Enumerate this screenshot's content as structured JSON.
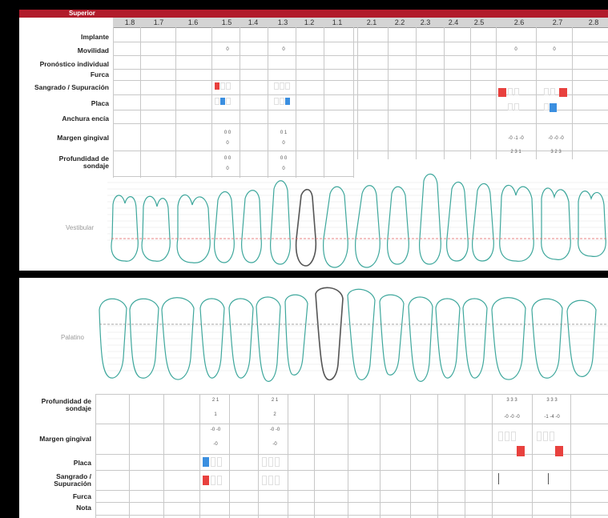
{
  "header": {
    "section_title": "Superior"
  },
  "teeth": [
    "1.8",
    "1.7",
    "1.6",
    "1.5",
    "1.4",
    "1.3",
    "1.2",
    "1.1",
    "2.1",
    "2.2",
    "2.3",
    "2.4",
    "2.5",
    "2.6",
    "2.7",
    "2.8"
  ],
  "upper_rows": [
    "Implante",
    "Movilidad",
    "Pronóstico individual",
    "Furca",
    "Sangrado / Supuración",
    "Placa",
    "Anchura encía",
    "Margen gingival",
    "Profundidad de sondaje"
  ],
  "lower_rows": [
    "Profundidad de sondaje",
    "Margen gingival",
    "Placa",
    "Sangrado / Supuración",
    "Furca",
    "Nota"
  ],
  "views": {
    "vestibular": "Vestibular",
    "palatino": "Palatino"
  },
  "colors": {
    "bleeding": "#e8413e",
    "plaque": "#3b8fe0",
    "tooth_outline": "#3ea79c",
    "header_bar": "#b11b2b"
  },
  "upper_values": {
    "t15": {
      "movilidad": "0",
      "margen_1": "0 0",
      "margen_2": "0",
      "sondaje_1": "0 0",
      "sondaje_2": "0"
    },
    "t13": {
      "movilidad": "0",
      "margen_1": "0 1",
      "margen_2": "0",
      "sondaje_1": "0 0",
      "sondaje_2": "0"
    },
    "t26": {
      "movilidad": "0",
      "margen_1": "-0 -1 -0",
      "sondaje_1": "2 3 1"
    },
    "t27": {
      "movilidad": "0",
      "margen_1": "-0 -0 -0",
      "sondaje_1": "3 2 3"
    }
  },
  "lower_values": {
    "t15": {
      "sondaje_1": "2 1",
      "sondaje_2": "1",
      "margen_1": "-0 -0",
      "margen_2": "-0"
    },
    "t13": {
      "sondaje_1": "2 1",
      "sondaje_2": "2",
      "margen_1": "-0 -0",
      "margen_2": "-0"
    },
    "t26": {
      "sondaje_1": "3 3 3",
      "sondaje_2": "-0 -0 -0"
    },
    "t27": {
      "sondaje_1": "3 3 3",
      "sondaje_2": "-1 -4 -0"
    }
  }
}
